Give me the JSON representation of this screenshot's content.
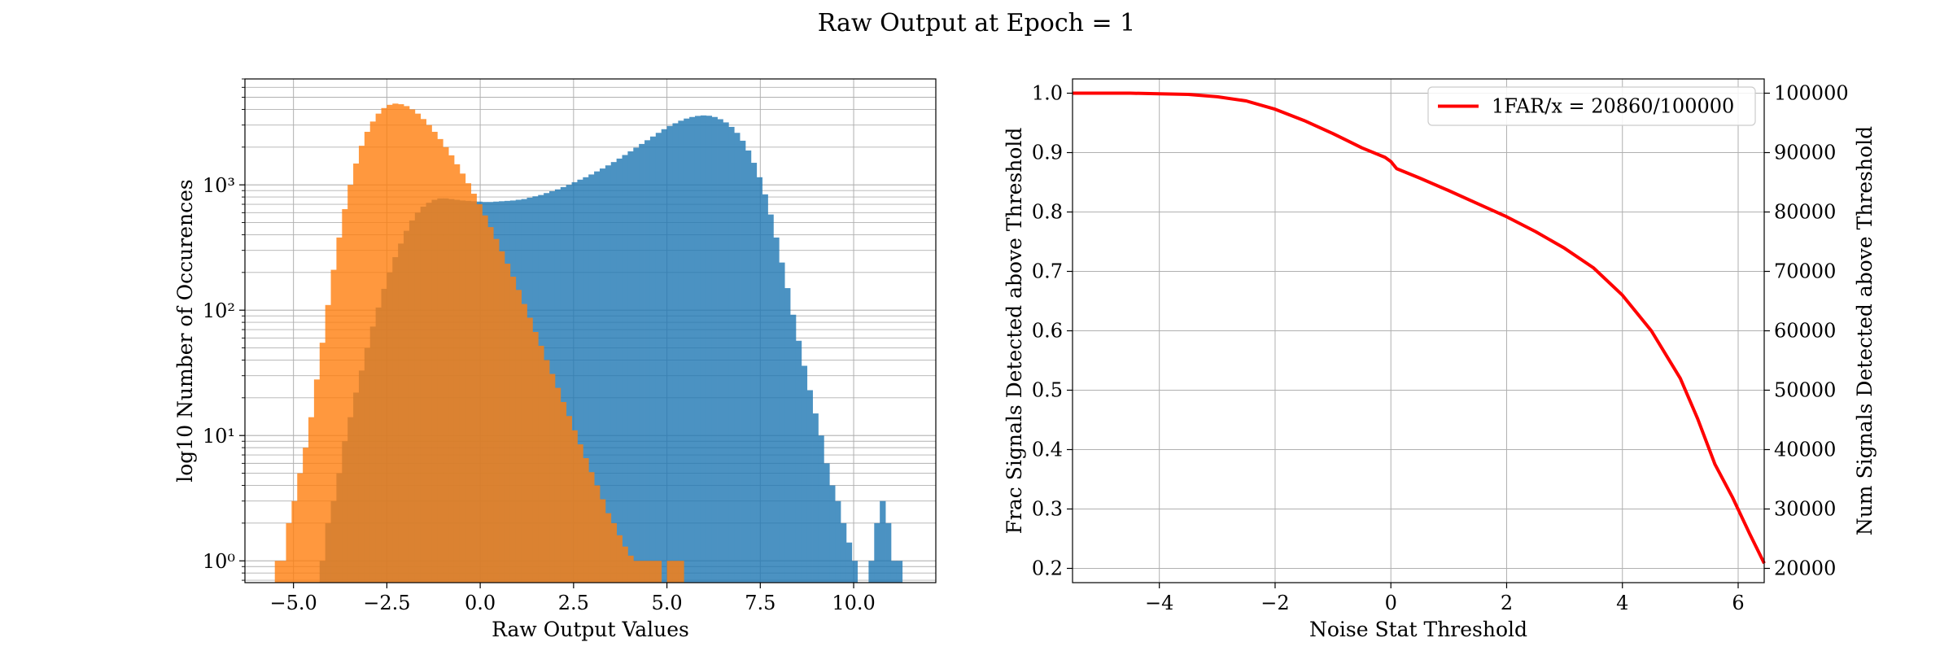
{
  "figure": {
    "title": "Raw Output at Epoch = 1"
  },
  "chart_data": [
    {
      "type": "bar",
      "subtype": "histogram",
      "xlabel": "Raw Output Values",
      "ylabel": "log10 Number of Occurences",
      "yscale": "log",
      "xlim": [
        -6.3,
        12.2
      ],
      "ylim": [
        0.67,
        7000
      ],
      "xticks": [
        -5.0,
        -2.5,
        0.0,
        2.5,
        5.0,
        7.5,
        10.0
      ],
      "xtick_labels": [
        "−5.0",
        "−2.5",
        "0.0",
        "2.5",
        "5.0",
        "7.5",
        "10.0"
      ],
      "yticks": [
        1,
        10,
        100,
        1000
      ],
      "ytick_labels": [
        "10⁰",
        "10¹",
        "10²",
        "10³"
      ],
      "grid": true,
      "series": [
        {
          "color": "#1f77b4",
          "bins_left": [
            -4.3,
            -4.15,
            -4.0,
            -3.85,
            -3.7,
            -3.55,
            -3.4,
            -3.25,
            -3.1,
            -2.95,
            -2.8,
            -2.65,
            -2.5,
            -2.35,
            -2.2,
            -2.05,
            -1.9,
            -1.75,
            -1.6,
            -1.45,
            -1.3,
            -1.15,
            -1.0,
            -0.85,
            -0.7,
            -0.55,
            -0.4,
            -0.25,
            -0.1,
            0.05,
            0.2,
            0.35,
            0.5,
            0.65,
            0.8,
            0.95,
            1.1,
            1.25,
            1.4,
            1.55,
            1.7,
            1.85,
            2.0,
            2.15,
            2.3,
            2.45,
            2.6,
            2.75,
            2.9,
            3.05,
            3.2,
            3.35,
            3.5,
            3.65,
            3.8,
            3.95,
            4.1,
            4.25,
            4.4,
            4.55,
            4.7,
            4.85,
            5.0,
            5.15,
            5.3,
            5.45,
            5.6,
            5.75,
            5.9,
            6.05,
            6.2,
            6.35,
            6.5,
            6.65,
            6.8,
            6.95,
            7.1,
            7.25,
            7.4,
            7.55,
            7.7,
            7.85,
            8.0,
            8.15,
            8.3,
            8.45,
            8.6,
            8.75,
            8.9,
            9.05,
            9.2,
            9.35,
            9.5,
            9.65,
            9.8,
            9.95,
            10.1,
            10.25,
            10.4,
            10.55,
            10.7,
            10.85,
            11.0,
            11.15
          ],
          "bin_width": 0.15,
          "values": [
            1,
            2,
            3,
            5,
            9,
            14,
            22,
            33,
            50,
            74,
            105,
            148,
            200,
            265,
            340,
            430,
            520,
            600,
            670,
            720,
            760,
            780,
            780,
            770,
            760,
            750,
            745,
            740,
            735,
            730,
            730,
            735,
            740,
            745,
            750,
            760,
            770,
            790,
            810,
            830,
            860,
            890,
            920,
            960,
            1000,
            1050,
            1100,
            1150,
            1210,
            1280,
            1350,
            1430,
            1520,
            1620,
            1730,
            1850,
            1980,
            2120,
            2270,
            2430,
            2600,
            2780,
            2950,
            3100,
            3250,
            3380,
            3480,
            3550,
            3580,
            3560,
            3480,
            3340,
            3150,
            2900,
            2600,
            2250,
            1880,
            1500,
            1150,
            840,
            580,
            380,
            240,
            150,
            92,
            57,
            36,
            23,
            15,
            10,
            6,
            4,
            3,
            2,
            1.4,
            1,
            0,
            0,
            1,
            2,
            3,
            2,
            1,
            1
          ]
        },
        {
          "color": "#ff7f0e",
          "bins_left": [
            -5.5,
            -5.35,
            -5.2,
            -5.05,
            -4.9,
            -4.75,
            -4.6,
            -4.45,
            -4.3,
            -4.15,
            -4.0,
            -3.85,
            -3.7,
            -3.55,
            -3.4,
            -3.25,
            -3.1,
            -2.95,
            -2.8,
            -2.65,
            -2.5,
            -2.35,
            -2.2,
            -2.05,
            -1.9,
            -1.75,
            -1.6,
            -1.45,
            -1.3,
            -1.15,
            -1.0,
            -0.85,
            -0.7,
            -0.55,
            -0.4,
            -0.25,
            -0.1,
            0.05,
            0.2,
            0.35,
            0.5,
            0.65,
            0.8,
            0.95,
            1.1,
            1.25,
            1.4,
            1.55,
            1.7,
            1.85,
            2.0,
            2.15,
            2.3,
            2.45,
            2.6,
            2.75,
            2.9,
            3.05,
            3.2,
            3.35,
            3.5,
            3.65,
            3.8,
            3.95,
            4.1,
            4.25,
            4.4,
            4.55,
            4.7,
            4.85,
            5.0,
            5.15,
            5.3
          ],
          "bin_width": 0.15,
          "values": [
            1,
            1,
            2,
            3,
            5,
            8,
            14,
            28,
            55,
            110,
            210,
            380,
            640,
            1000,
            1480,
            2050,
            2650,
            3200,
            3700,
            4100,
            4350,
            4450,
            4400,
            4250,
            4000,
            3700,
            3350,
            3000,
            2650,
            2320,
            2000,
            1720,
            1460,
            1230,
            1030,
            850,
            700,
            570,
            460,
            370,
            295,
            235,
            185,
            145,
            112,
            87,
            67,
            52,
            40,
            31,
            24,
            18.5,
            14.3,
            11,
            8.5,
            6.6,
            5.1,
            4,
            3.1,
            2.4,
            2,
            1.6,
            1.3,
            1.1,
            1,
            1,
            1,
            1,
            1,
            0,
            1,
            1,
            1
          ]
        }
      ]
    },
    {
      "type": "line",
      "xlabel": "Noise Stat Threshold",
      "ylabel": "Frac Signals Detected above Threshold",
      "ylabel_right": "Num Signals Detected above Threshold",
      "xlim": [
        -5.5,
        6.45
      ],
      "ylim": [
        0.176,
        1.024
      ],
      "ylim_right": [
        17600,
        102400
      ],
      "xticks": [
        -4,
        -2,
        0,
        2,
        4,
        6
      ],
      "xtick_labels": [
        "−4",
        "−2",
        "0",
        "2",
        "4",
        "6"
      ],
      "yticks": [
        0.2,
        0.3,
        0.4,
        0.5,
        0.6,
        0.7,
        0.8,
        0.9,
        1.0
      ],
      "ytick_labels": [
        "0.2",
        "0.3",
        "0.4",
        "0.5",
        "0.6",
        "0.7",
        "0.8",
        "0.9",
        "1.0"
      ],
      "yticks_right": [
        20000,
        30000,
        40000,
        50000,
        60000,
        70000,
        80000,
        90000,
        100000
      ],
      "ytick_labels_right": [
        "20000",
        "30000",
        "40000",
        "50000",
        "60000",
        "70000",
        "80000",
        "90000",
        "100000"
      ],
      "grid": true,
      "legend_position": "upper right",
      "series": [
        {
          "name": "1FAR/x = 20860/100000",
          "color": "#ff0000",
          "x": [
            -5.5,
            -5,
            -4.5,
            -4,
            -3.5,
            -3,
            -2.5,
            -2,
            -1.5,
            -1,
            -0.5,
            -0.1,
            0,
            0.1,
            0.5,
            1,
            1.5,
            2,
            2.5,
            3,
            3.5,
            4,
            4.5,
            5,
            5.3,
            5.6,
            5.9,
            6.2,
            6.45
          ],
          "y": [
            1.0,
            1.0,
            1.0,
            0.999,
            0.998,
            0.994,
            0.987,
            0.973,
            0.954,
            0.932,
            0.908,
            0.892,
            0.885,
            0.873,
            0.857,
            0.836,
            0.814,
            0.792,
            0.767,
            0.739,
            0.706,
            0.66,
            0.6,
            0.52,
            0.452,
            0.375,
            0.32,
            0.258,
            0.2086
          ]
        }
      ]
    }
  ]
}
